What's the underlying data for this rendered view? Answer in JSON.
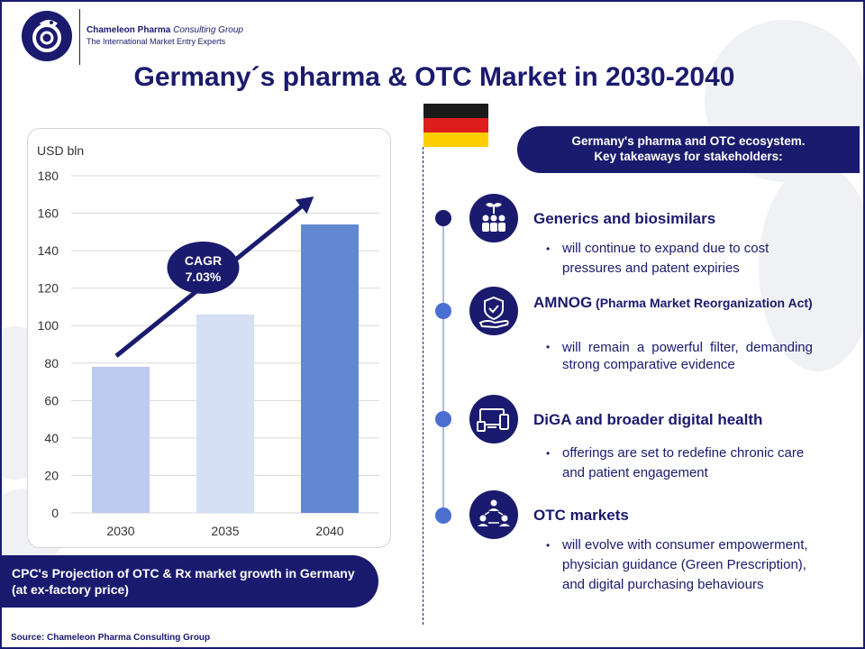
{
  "brand": {
    "name_bold": "Chameleon Pharma",
    "name_italic": "Consulting Group",
    "tagline": "The International Market Entry Experts"
  },
  "title": "Germany´s pharma & OTC Market in 2030-2040",
  "chart_data": {
    "type": "bar",
    "ylabel": "USD bln",
    "ylim": [
      0,
      180
    ],
    "yticks": [
      0,
      20,
      40,
      60,
      80,
      100,
      120,
      140,
      160,
      180
    ],
    "categories": [
      "2030",
      "2035",
      "2040"
    ],
    "values": [
      78,
      106,
      154
    ],
    "bar_colors": [
      "#bccbef",
      "#d5e0f5",
      "#6288d2"
    ],
    "annotation": {
      "line1": "CAGR",
      "line2": "7.03%"
    },
    "grid": true
  },
  "caption": "CPC's Projection of OTC & Rx market growth in Germany (at ex-factory price)",
  "source": "Source: Chameleon Pharma Consulting Group",
  "key_pill": {
    "line1": "Germany's pharma and OTC ecosystem.",
    "line2": "Key takeaways for stakeholders:"
  },
  "items": [
    {
      "icon": "people-plant-icon",
      "title": "Generics and biosimilars",
      "title_small": "",
      "bullet": "will continue to expand due to cost pressures and patent expiries"
    },
    {
      "icon": "shield-hand-icon",
      "title": "AMNOG",
      "title_small": " (Pharma Market Reorganization Act)",
      "bullet": "will remain a powerful filter, demanding strong comparative evidence"
    },
    {
      "icon": "devices-icon",
      "title": "DiGA and broader digital health",
      "title_small": "",
      "bullet": "offerings are set to redefine chronic care and patient engagement"
    },
    {
      "icon": "network-people-icon",
      "title": "OTC markets",
      "title_small": "",
      "bullet": "will evolve with consumer empowerment, physician guidance (Green Prescription), and digital purchasing behaviours"
    }
  ],
  "colors": {
    "navy": "#1a1a6e",
    "accent": "#4a6fd1"
  }
}
